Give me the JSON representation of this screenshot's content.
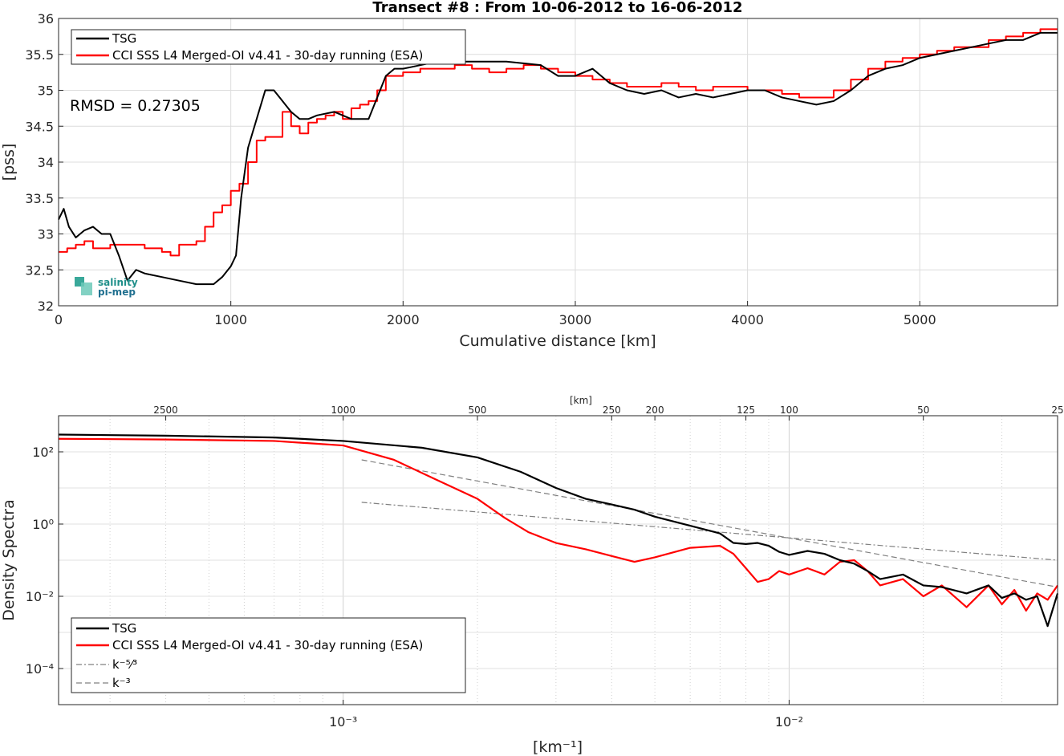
{
  "chart_data": [
    {
      "type": "line",
      "title": "Transect #8 : From 10-06-2012 to 16-06-2012",
      "xlabel": "Cumulative distance [km]",
      "ylabel": "[pss]",
      "xlim": [
        0,
        5800
      ],
      "ylim": [
        32,
        36
      ],
      "xticks": [
        "0",
        "1000",
        "2000",
        "3000",
        "4000",
        "5000"
      ],
      "yticks": [
        "32",
        "32.5",
        "33",
        "33.5",
        "34",
        "34.5",
        "35",
        "35.5",
        "36"
      ],
      "grid": true,
      "legend_position": "top-left",
      "annotation": "RMSD = 0.27305",
      "logo": {
        "line1": "salinity",
        "line2": "pi-mep"
      },
      "series": [
        {
          "name": "TSG",
          "color": "#000000",
          "x": [
            0,
            30,
            60,
            100,
            150,
            200,
            250,
            300,
            350,
            400,
            450,
            500,
            600,
            700,
            800,
            900,
            950,
            1000,
            1030,
            1060,
            1100,
            1150,
            1200,
            1250,
            1300,
            1350,
            1400,
            1450,
            1500,
            1600,
            1700,
            1800,
            1850,
            1900,
            1950,
            2000,
            2100,
            2200,
            2400,
            2600,
            2800,
            2900,
            3000,
            3100,
            3200,
            3300,
            3400,
            3500,
            3600,
            3700,
            3800,
            3900,
            4000,
            4100,
            4200,
            4300,
            4400,
            4500,
            4600,
            4700,
            4800,
            4900,
            5000,
            5100,
            5200,
            5300,
            5400,
            5500,
            5600,
            5700,
            5800
          ],
          "y": [
            33.2,
            33.35,
            33.1,
            32.95,
            33.05,
            33.1,
            33.0,
            33.0,
            32.7,
            32.35,
            32.5,
            32.45,
            32.4,
            32.35,
            32.3,
            32.3,
            32.4,
            32.55,
            32.7,
            33.5,
            34.2,
            34.6,
            35.0,
            35.0,
            34.85,
            34.7,
            34.6,
            34.6,
            34.65,
            34.7,
            34.6,
            34.6,
            34.9,
            35.2,
            35.3,
            35.3,
            35.35,
            35.4,
            35.4,
            35.4,
            35.35,
            35.2,
            35.2,
            35.3,
            35.1,
            35.0,
            34.95,
            35.0,
            34.9,
            34.95,
            34.9,
            34.95,
            35.0,
            35.0,
            34.9,
            34.85,
            34.8,
            34.85,
            35.0,
            35.2,
            35.3,
            35.35,
            35.45,
            35.5,
            35.55,
            35.6,
            35.65,
            35.7,
            35.7,
            35.8,
            35.8
          ]
        },
        {
          "name": "CCI SSS L4 Merged-OI v4.41 - 30-day running (ESA)",
          "color": "#ff0000",
          "step": true,
          "x": [
            0,
            50,
            100,
            150,
            200,
            300,
            400,
            500,
            600,
            650,
            700,
            800,
            850,
            900,
            950,
            1000,
            1050,
            1100,
            1150,
            1200,
            1300,
            1350,
            1400,
            1450,
            1500,
            1550,
            1600,
            1650,
            1700,
            1750,
            1800,
            1850,
            1900,
            2000,
            2100,
            2200,
            2300,
            2400,
            2500,
            2600,
            2700,
            2800,
            2900,
            3000,
            3100,
            3200,
            3300,
            3400,
            3500,
            3600,
            3700,
            3800,
            3900,
            4000,
            4100,
            4200,
            4300,
            4400,
            4500,
            4600,
            4700,
            4800,
            4900,
            5000,
            5100,
            5200,
            5300,
            5400,
            5500,
            5600,
            5700,
            5800
          ],
          "y": [
            32.75,
            32.8,
            32.85,
            32.9,
            32.8,
            32.85,
            32.85,
            32.8,
            32.75,
            32.7,
            32.85,
            32.9,
            33.1,
            33.3,
            33.4,
            33.6,
            33.7,
            34.0,
            34.3,
            34.35,
            34.7,
            34.5,
            34.4,
            34.55,
            34.6,
            34.65,
            34.7,
            34.6,
            34.75,
            34.8,
            34.85,
            35.0,
            35.2,
            35.25,
            35.3,
            35.3,
            35.35,
            35.3,
            35.25,
            35.3,
            35.35,
            35.3,
            35.25,
            35.2,
            35.15,
            35.1,
            35.05,
            35.05,
            35.1,
            35.05,
            35.0,
            35.05,
            35.05,
            35.0,
            35.0,
            34.95,
            34.9,
            34.9,
            35.0,
            35.15,
            35.3,
            35.4,
            35.45,
            35.5,
            35.55,
            35.6,
            35.6,
            35.7,
            35.75,
            35.8,
            35.85,
            35.85
          ]
        }
      ]
    },
    {
      "type": "line",
      "xlabel": "[km⁻¹]",
      "ylabel": "Density Spectra",
      "x_scale": "log",
      "y_scale": "log",
      "xlim": [
        0.00023,
        0.04
      ],
      "ylim": [
        1e-05,
        1000
      ],
      "xticks": [
        0.001,
        0.01
      ],
      "xtick_labels": [
        "10⁻³",
        "10⁻²"
      ],
      "yticks": [
        0.0001,
        0.01,
        1,
        100
      ],
      "ytick_labels": [
        "10⁻⁴",
        "10⁻²",
        "10⁰",
        "10²"
      ],
      "top_axis_label": "[km]",
      "top_ticks": [
        "2500",
        "1000",
        "500",
        "250",
        "200",
        "125",
        "100",
        "50",
        "25"
      ],
      "grid": true,
      "legend_position": "bottom-left",
      "series": [
        {
          "name": "TSG",
          "color": "#000000",
          "x": [
            0.00023,
            0.0004,
            0.0007,
            0.001,
            0.0015,
            0.002,
            0.0025,
            0.003,
            0.0035,
            0.004,
            0.0045,
            0.005,
            0.006,
            0.007,
            0.0075,
            0.008,
            0.0085,
            0.009,
            0.0095,
            0.01,
            0.011,
            0.012,
            0.013,
            0.014,
            0.015,
            0.016,
            0.018,
            0.02,
            0.022,
            0.025,
            0.028,
            0.03,
            0.032,
            0.034,
            0.036,
            0.038,
            0.04
          ],
          "y": [
            300,
            280,
            250,
            200,
            130,
            70,
            28,
            10,
            5,
            3.5,
            2.5,
            1.6,
            0.9,
            0.55,
            0.3,
            0.28,
            0.3,
            0.25,
            0.17,
            0.14,
            0.18,
            0.15,
            0.1,
            0.08,
            0.05,
            0.03,
            0.04,
            0.02,
            0.018,
            0.012,
            0.02,
            0.009,
            0.012,
            0.008,
            0.01,
            0.0015,
            0.012
          ]
        },
        {
          "name": "CCI SSS L4 Merged-OI v4.41 - 30-day running (ESA)",
          "color": "#ff0000",
          "x": [
            0.00023,
            0.0004,
            0.0007,
            0.001,
            0.0013,
            0.0016,
            0.002,
            0.0023,
            0.0026,
            0.003,
            0.0035,
            0.004,
            0.0045,
            0.005,
            0.006,
            0.007,
            0.0075,
            0.008,
            0.0085,
            0.009,
            0.0095,
            0.01,
            0.011,
            0.012,
            0.013,
            0.014,
            0.015,
            0.016,
            0.018,
            0.02,
            0.022,
            0.025,
            0.028,
            0.03,
            0.032,
            0.034,
            0.036,
            0.038,
            0.04
          ],
          "y": [
            230,
            220,
            200,
            150,
            60,
            18,
            5,
            1.5,
            0.6,
            0.3,
            0.2,
            0.13,
            0.09,
            0.12,
            0.22,
            0.25,
            0.15,
            0.06,
            0.025,
            0.03,
            0.05,
            0.04,
            0.06,
            0.04,
            0.09,
            0.1,
            0.05,
            0.02,
            0.03,
            0.01,
            0.02,
            0.005,
            0.02,
            0.006,
            0.015,
            0.004,
            0.012,
            0.008,
            0.02
          ]
        },
        {
          "name": "k⁻⁵⁄³",
          "color": "#808080",
          "dash": "dashdot",
          "x": [
            0.0011,
            0.04
          ],
          "y": [
            4,
            0.1
          ]
        },
        {
          "name": "k⁻³",
          "color": "#808080",
          "dash": "dashed",
          "x": [
            0.0011,
            0.04
          ],
          "y": [
            60,
            0.018
          ]
        }
      ]
    }
  ]
}
